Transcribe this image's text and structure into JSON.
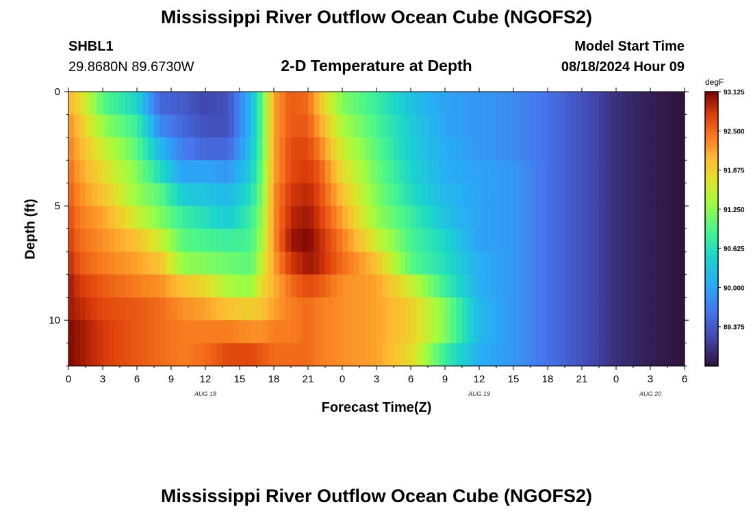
{
  "page": {
    "title_top": "Mississippi River Outflow Ocean Cube (NGOFS2)",
    "title_bottom": "Mississippi River Outflow Ocean Cube (NGOFS2)",
    "station_id": "SHBL1",
    "station_coords": "29.8680N  89.6730W",
    "subtitle": "2-D Temperature at Depth",
    "model_start_label": "Model Start Time",
    "model_start_value": "08/18/2024 Hour 09"
  },
  "chart_data": {
    "type": "heatmap",
    "title": "2-D Temperature at Depth",
    "xlabel": "Forecast Time(Z)",
    "ylabel": "Depth (ft)",
    "x_unit": "hours since 08/18/2024 00Z",
    "xlim": [
      0,
      54
    ],
    "ylim": [
      12,
      0
    ],
    "x_ticks": [
      0,
      3,
      6,
      9,
      12,
      15,
      18,
      21,
      24,
      27,
      30,
      33,
      36,
      39,
      42,
      45,
      48,
      51,
      54
    ],
    "x_tick_labels": [
      "0",
      "3",
      "6",
      "9",
      "12",
      "15",
      "18",
      "21",
      "0",
      "3",
      "6",
      "9",
      "12",
      "15",
      "18",
      "21",
      "0",
      "3",
      "6"
    ],
    "y_ticks": [
      0,
      5,
      10
    ],
    "y_tick_labels": [
      "0",
      "5",
      "10"
    ],
    "date_labels": [
      {
        "x": 12,
        "text": "AUG 18"
      },
      {
        "x": 36,
        "text": "AUG 19"
      },
      {
        "x": 51,
        "text": "AUG 20"
      }
    ],
    "colorbar": {
      "units": "degF",
      "min": 88.75,
      "max": 93.125,
      "tick_values": [
        89.375,
        90.0,
        90.625,
        91.25,
        91.875,
        92.5,
        93.125
      ],
      "tick_labels": [
        "89.375",
        "90.000",
        "90.625",
        "91.250",
        "91.875",
        "92.500",
        "93.125"
      ]
    },
    "depth_levels_ft": [
      0.5,
      1.5,
      2.5,
      3.5,
      4.5,
      5.5,
      6.5,
      7.5,
      8.5,
      9.5,
      10.5,
      11.5
    ],
    "profile_keys_hours": [
      0,
      1,
      3,
      6,
      8,
      10,
      12,
      14,
      16,
      17,
      18,
      19.5,
      21,
      22,
      24,
      27,
      30,
      33,
      36,
      39,
      42,
      45,
      48,
      51,
      54
    ],
    "temperature_profiles_degF": [
      [
        92.1,
        92.3,
        92.4,
        92.5,
        92.6,
        92.7,
        92.8,
        92.9,
        93.0,
        93.0,
        93.1,
        93.1
      ],
      [
        91.8,
        92.0,
        92.1,
        92.2,
        92.3,
        92.4,
        92.5,
        92.6,
        92.8,
        92.9,
        93.0,
        93.0
      ],
      [
        91.0,
        91.3,
        91.6,
        91.8,
        92.0,
        92.2,
        92.3,
        92.4,
        92.6,
        92.7,
        92.8,
        92.8
      ],
      [
        90.5,
        90.8,
        91.0,
        91.2,
        91.3,
        91.6,
        92.0,
        92.2,
        92.4,
        92.6,
        92.6,
        92.6
      ],
      [
        89.5,
        89.8,
        90.2,
        90.6,
        91.0,
        91.2,
        91.6,
        92.0,
        92.3,
        92.5,
        92.5,
        92.5
      ],
      [
        89.4,
        89.5,
        89.7,
        90.0,
        90.4,
        90.8,
        91.0,
        91.3,
        92.0,
        92.3,
        92.4,
        92.4
      ],
      [
        89.2,
        89.3,
        89.5,
        90.0,
        90.3,
        90.6,
        90.9,
        91.2,
        91.8,
        92.2,
        92.4,
        92.5
      ],
      [
        89.3,
        89.3,
        89.5,
        89.9,
        90.2,
        90.4,
        90.8,
        91.1,
        91.4,
        92.0,
        92.4,
        92.7
      ],
      [
        90.2,
        90.2,
        90.3,
        90.4,
        90.6,
        90.8,
        90.9,
        91.0,
        91.3,
        91.9,
        92.3,
        92.7
      ],
      [
        91.0,
        91.0,
        91.0,
        91.1,
        91.2,
        91.3,
        91.4,
        91.6,
        91.8,
        92.0,
        92.3,
        92.6
      ],
      [
        92.2,
        92.2,
        92.2,
        92.2,
        92.3,
        92.3,
        92.3,
        92.2,
        92.1,
        92.2,
        92.4,
        92.5
      ],
      [
        92.6,
        92.6,
        92.7,
        92.7,
        92.8,
        92.9,
        93.0,
        92.8,
        92.5,
        92.4,
        92.4,
        92.5
      ],
      [
        92.5,
        92.6,
        92.7,
        92.8,
        92.9,
        93.0,
        93.1,
        93.0,
        92.7,
        92.5,
        92.5,
        92.5
      ],
      [
        92.0,
        92.2,
        92.4,
        92.6,
        92.7,
        92.8,
        92.9,
        92.9,
        92.6,
        92.4,
        92.4,
        92.4
      ],
      [
        91.2,
        91.4,
        91.6,
        91.8,
        92.0,
        92.2,
        92.4,
        92.5,
        92.3,
        92.3,
        92.3,
        92.3
      ],
      [
        90.8,
        90.9,
        91.0,
        91.1,
        91.2,
        91.3,
        91.6,
        92.0,
        92.2,
        92.2,
        92.2,
        92.2
      ],
      [
        90.3,
        90.4,
        90.4,
        90.5,
        90.6,
        90.8,
        90.9,
        91.0,
        91.6,
        91.9,
        91.9,
        91.8
      ],
      [
        90.0,
        90.0,
        90.1,
        90.1,
        90.2,
        90.3,
        90.5,
        90.6,
        90.8,
        91.2,
        91.2,
        90.8
      ],
      [
        89.9,
        89.9,
        89.9,
        90.0,
        90.0,
        90.0,
        90.0,
        90.1,
        90.1,
        90.2,
        90.2,
        90.1
      ],
      [
        89.8,
        89.8,
        89.8,
        89.9,
        89.9,
        89.9,
        89.9,
        89.9,
        89.9,
        89.9,
        89.9,
        89.9
      ],
      [
        89.6,
        89.6,
        89.6,
        89.6,
        89.6,
        89.6,
        89.6,
        89.6,
        89.6,
        89.6,
        89.6,
        89.6
      ],
      [
        89.3,
        89.3,
        89.3,
        89.3,
        89.3,
        89.3,
        89.3,
        89.3,
        89.3,
        89.3,
        89.3,
        89.3
      ],
      [
        89.0,
        89.0,
        89.0,
        89.0,
        89.0,
        89.0,
        89.0,
        89.0,
        89.0,
        89.0,
        89.0,
        89.0
      ],
      [
        88.85,
        88.85,
        88.85,
        88.85,
        88.85,
        88.85,
        88.85,
        88.85,
        88.85,
        88.85,
        88.85,
        88.85
      ],
      [
        88.75,
        88.75,
        88.75,
        88.75,
        88.75,
        88.75,
        88.75,
        88.75,
        88.75,
        88.75,
        88.75,
        88.75
      ]
    ]
  }
}
